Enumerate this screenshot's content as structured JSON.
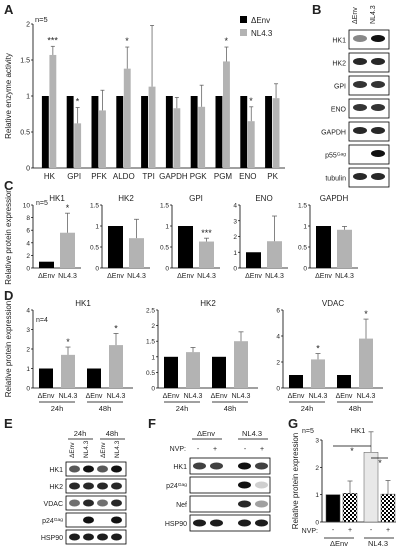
{
  "panel_letters": [
    "A",
    "B",
    "C",
    "D",
    "E",
    "F",
    "G"
  ],
  "colors": {
    "black": "#000000",
    "gray": "#b3b3b3",
    "light": "#e8e8e8",
    "error": "#666666"
  },
  "panelA": {
    "n_label": "n=5",
    "stars": {
      "HK": "***",
      "GPI": "*",
      "ALDO": "*",
      "PGM": "*",
      "ENO": "*"
    },
    "legend": [
      "ΔEnv",
      "NL4.3"
    ]
  },
  "blotB": {
    "top_labels": [
      "ΔEnv",
      "NL4.3"
    ],
    "rows": [
      "HK1",
      "HK2",
      "GPI",
      "ENO",
      "GAPDH",
      "p55Gag",
      "tubulin"
    ]
  },
  "panelC": {
    "n_label": "n=5",
    "x_labels": [
      "ΔEnv",
      "NL4.3"
    ]
  },
  "panelD": {
    "n_label": "n=4",
    "x_labels": [
      "ΔEnv",
      "NL4.3",
      "ΔEnv",
      "NL4.3"
    ],
    "time_labels": [
      "24h",
      "48h"
    ]
  },
  "blotE": {
    "time_labels": [
      "24h",
      "48h"
    ],
    "lane_labels": [
      "ΔEnv",
      "NL4.3",
      "ΔEnv",
      "NL4.3"
    ],
    "rows": [
      "HK1",
      "HK2",
      "VDAC",
      "p24Gag",
      "HSP90"
    ]
  },
  "blotF": {
    "nvp_label": "NVP:",
    "group_labels": [
      "ΔEnv",
      "NL4.3"
    ],
    "lane_signs": [
      "-",
      "+",
      "-",
      "+"
    ],
    "rows": [
      "HK1",
      "p24Gag",
      "Nef",
      "HSP90"
    ]
  },
  "panelG": {
    "title": "HK1",
    "n_label": "n=5",
    "nvp_label": "NVP:",
    "signs": [
      "-",
      "+",
      "-",
      "+"
    ],
    "groups": [
      "ΔEnv",
      "NL4.3"
    ],
    "stars": [
      "*",
      "*"
    ]
  },
  "chart_data": [
    {
      "id": "A",
      "type": "bar",
      "ylabel": "Relative enzyme activity",
      "ylim": [
        0,
        2
      ],
      "yticks": [
        0,
        0.5,
        1,
        1.5,
        2
      ],
      "categories": [
        "HK",
        "GPI",
        "PFK",
        "ALDO",
        "TPI",
        "GAPDH",
        "PGK",
        "PGM",
        "ENO",
        "PK"
      ],
      "series": [
        {
          "name": "ΔEnv",
          "values": [
            1,
            1,
            1,
            1,
            1,
            1,
            1,
            1,
            1,
            1
          ],
          "errors": [
            0,
            0,
            0,
            0,
            0,
            0,
            0,
            0,
            0,
            0
          ]
        },
        {
          "name": "NL4.3",
          "values": [
            1.57,
            0.62,
            0.8,
            1.38,
            1.13,
            0.83,
            0.85,
            1.48,
            0.65,
            0.97
          ],
          "errors": [
            0.12,
            0.22,
            0.28,
            0.3,
            0.85,
            0.15,
            0.3,
            0.2,
            0.2,
            0.2
          ]
        }
      ]
    },
    {
      "id": "C1",
      "type": "bar",
      "title": "HK1",
      "ylabel": "Relative protein expression",
      "ylim": [
        0,
        10
      ],
      "yticks": [
        0,
        2,
        4,
        6,
        8,
        10
      ],
      "categories": [
        "ΔEnv",
        "NL4.3"
      ],
      "values": [
        1,
        5.6
      ],
      "errors": [
        0,
        3.1
      ],
      "stars": [
        "",
        "*"
      ]
    },
    {
      "id": "C2",
      "type": "bar",
      "title": "HK2",
      "ylim": [
        0,
        1.5
      ],
      "yticks": [
        0,
        0.5,
        1,
        1.5
      ],
      "categories": [
        "ΔEnv",
        "NL4.3"
      ],
      "values": [
        1,
        0.71
      ],
      "errors": [
        0,
        0.45
      ],
      "stars": [
        "",
        ""
      ]
    },
    {
      "id": "C3",
      "type": "bar",
      "title": "GPI",
      "ylim": [
        0,
        1.5
      ],
      "yticks": [
        0,
        0.5,
        1,
        1.5
      ],
      "categories": [
        "ΔEnv",
        "NL4.3"
      ],
      "values": [
        1,
        0.63
      ],
      "errors": [
        0,
        0.08
      ],
      "stars": [
        "",
        "***"
      ]
    },
    {
      "id": "C4",
      "type": "bar",
      "title": "ENO",
      "ylim": [
        0,
        4
      ],
      "yticks": [
        0,
        1,
        2,
        3,
        4
      ],
      "categories": [
        "ΔEnv",
        "NL4.3"
      ],
      "values": [
        1,
        1.7
      ],
      "errors": [
        0,
        1.6
      ],
      "stars": [
        "",
        ""
      ]
    },
    {
      "id": "C5",
      "type": "bar",
      "title": "GAPDH",
      "ylim": [
        0,
        1.5
      ],
      "yticks": [
        0,
        0.5,
        1,
        1.5
      ],
      "categories": [
        "ΔEnv",
        "NL4.3"
      ],
      "values": [
        1,
        0.91
      ],
      "errors": [
        0,
        0.08
      ],
      "stars": [
        "",
        ""
      ]
    },
    {
      "id": "D1",
      "type": "bar",
      "title": "HK1",
      "ylabel": "Relative protein expression",
      "ylim": [
        0,
        4
      ],
      "yticks": [
        0,
        1,
        2,
        3,
        4
      ],
      "categories": [
        "ΔEnv",
        "NL4.3",
        "ΔEnv",
        "NL4.3"
      ],
      "values": [
        1,
        1.7,
        1,
        2.2
      ],
      "errors": [
        0,
        0.4,
        0,
        0.6
      ],
      "stars": [
        "",
        "*",
        "",
        "*"
      ]
    },
    {
      "id": "D2",
      "type": "bar",
      "title": "HK2",
      "ylim": [
        0,
        2.5
      ],
      "yticks": [
        0,
        0.5,
        1,
        1.5,
        2,
        2.5
      ],
      "categories": [
        "ΔEnv",
        "NL4.3",
        "ΔEnv",
        "NL4.3"
      ],
      "values": [
        1,
        1.15,
        1,
        1.5
      ],
      "errors": [
        0,
        0.15,
        0,
        0.3
      ],
      "stars": [
        "",
        "",
        "",
        ""
      ]
    },
    {
      "id": "D3",
      "type": "bar",
      "title": "VDAC",
      "ylim": [
        0,
        6
      ],
      "yticks": [
        0,
        2,
        4,
        6
      ],
      "categories": [
        "ΔEnv",
        "NL4.3",
        "ΔEnv",
        "NL4.3"
      ],
      "values": [
        1,
        2.2,
        1,
        3.8
      ],
      "errors": [
        0,
        0.45,
        0,
        1.5
      ],
      "stars": [
        "",
        "*",
        "",
        "*"
      ]
    },
    {
      "id": "G",
      "type": "bar",
      "title": "HK1",
      "ylabel": "Relative protein expression",
      "ylim": [
        0,
        3
      ],
      "yticks": [
        0,
        1,
        2,
        3
      ],
      "categories": [
        "ΔEnv -",
        "ΔEnv +",
        "NL4.3 -",
        "NL4.3 +"
      ],
      "values": [
        1,
        1.05,
        2.55,
        1.02
      ],
      "errors": [
        0,
        0.45,
        0.75,
        0.5
      ]
    }
  ]
}
